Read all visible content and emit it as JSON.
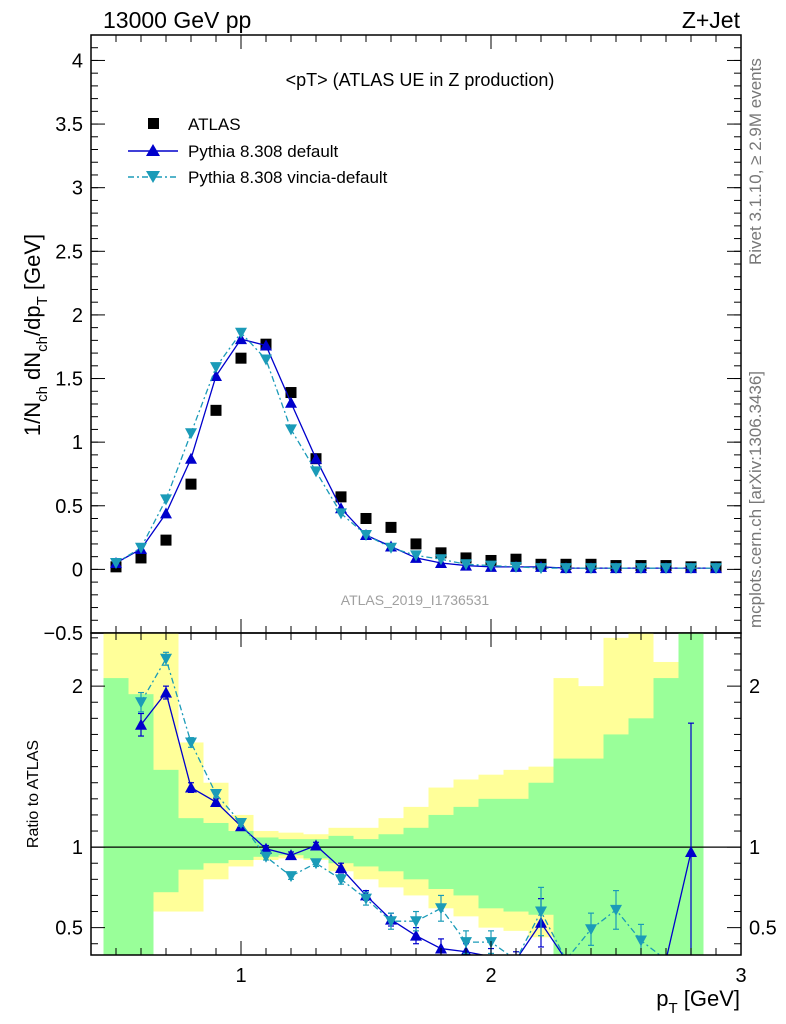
{
  "header": {
    "left": "13000 GeV pp",
    "right": "Z+Jet"
  },
  "side_labels": {
    "rivet": "Rivet 3.1.10, ≥ 2.9M events",
    "mcplots": "mcplots.cern.ch [arXiv:1306.3436]"
  },
  "watermark": "ATLAS_2019_I1736531",
  "colors": {
    "atlas": "#000000",
    "pythia_default": "#0000cc",
    "pythia_vincia": "#1b9bb8",
    "band_yellow": "#ffff99",
    "band_green": "#99ff99"
  },
  "chart_data": [
    {
      "type": "scatter",
      "title": "<pT> (ATLAS UE in Z production)",
      "ylabel_main": "1/N",
      "ylabel_sub1": "ch",
      "ylabel_mid": " dN",
      "ylabel_sub2": "ch",
      "ylabel_mid2": "/dp",
      "ylabel_sub3": "T",
      "ylabel_end": " [GeV]",
      "xlim": [
        0.4,
        3.0
      ],
      "ylim": [
        -0.5,
        4.2
      ],
      "yticks": [
        -0.5,
        0,
        0.5,
        1,
        1.5,
        2,
        2.5,
        3,
        3.5,
        4
      ],
      "ytick_labels": [
        "−0.5",
        "0",
        "0.5",
        "1",
        "1.5",
        "2",
        "2.5",
        "3",
        "3.5",
        "4"
      ],
      "legend_position": "top-left",
      "series": [
        {
          "name": "ATLAS",
          "style": "square",
          "x": [
            0.5,
            0.6,
            0.7,
            0.8,
            0.9,
            1.0,
            1.1,
            1.2,
            1.3,
            1.4,
            1.5,
            1.6,
            1.7,
            1.8,
            1.9,
            2.0,
            2.1,
            2.2,
            2.3,
            2.4,
            2.5,
            2.6,
            2.7,
            2.8,
            2.9
          ],
          "y": [
            0.02,
            0.09,
            0.23,
            0.67,
            1.25,
            1.66,
            1.77,
            1.39,
            0.87,
            0.57,
            0.4,
            0.33,
            0.2,
            0.13,
            0.09,
            0.07,
            0.08,
            0.04,
            0.04,
            0.04,
            0.03,
            0.03,
            0.03,
            0.02,
            0.02
          ]
        },
        {
          "name": "Pythia 8.308 default",
          "style": "triangle-up",
          "x": [
            0.5,
            0.6,
            0.7,
            0.8,
            0.9,
            1.0,
            1.1,
            1.2,
            1.3,
            1.4,
            1.5,
            1.6,
            1.7,
            1.8,
            1.9,
            2.0,
            2.1,
            2.2,
            2.3,
            2.4,
            2.5,
            2.6,
            2.7,
            2.8,
            2.9
          ],
          "y": [
            0.05,
            0.16,
            0.44,
            0.87,
            1.52,
            1.81,
            1.76,
            1.31,
            0.87,
            0.48,
            0.27,
            0.18,
            0.09,
            0.05,
            0.03,
            0.02,
            0.02,
            0.02,
            0.01,
            0.01,
            0.01,
            0.01,
            0.01,
            0.01,
            0.01
          ]
        },
        {
          "name": "Pythia 8.308 vincia-default",
          "style": "triangle-down",
          "x": [
            0.5,
            0.6,
            0.7,
            0.8,
            0.9,
            1.0,
            1.1,
            1.2,
            1.3,
            1.4,
            1.5,
            1.6,
            1.7,
            1.8,
            1.9,
            2.0,
            2.1,
            2.2,
            2.3,
            2.4,
            2.5,
            2.6,
            2.7,
            2.8,
            2.9
          ],
          "y": [
            0.05,
            0.17,
            0.55,
            1.07,
            1.59,
            1.86,
            1.65,
            1.1,
            0.77,
            0.44,
            0.27,
            0.17,
            0.11,
            0.08,
            0.04,
            0.03,
            0.02,
            0.01,
            0.01,
            0.01,
            0.01,
            0.01,
            0.01,
            0.01,
            0.01
          ]
        }
      ]
    },
    {
      "type": "line",
      "ylabel": "Ratio to ATLAS",
      "xlabel_main": "p",
      "xlabel_sub": "T",
      "xlabel_end": " [GeV]",
      "xlim": [
        0.4,
        3.0
      ],
      "ylim": [
        0.33,
        2.33
      ],
      "xticks": [
        1,
        2,
        3
      ],
      "xtick_labels": [
        "1",
        "2",
        "3"
      ],
      "yticks": [
        0.5,
        1,
        2
      ],
      "ytick_labels": [
        "0.5",
        "1",
        "2"
      ],
      "bands": {
        "edges": [
          0.45,
          0.55,
          0.65,
          0.75,
          0.85,
          0.95,
          1.05,
          1.15,
          1.25,
          1.35,
          1.45,
          1.55,
          1.65,
          1.75,
          1.85,
          1.95,
          2.05,
          2.15,
          2.25,
          2.35,
          2.45,
          2.55,
          2.65,
          2.75,
          2.85
        ],
        "yellow_hi": [
          2.33,
          2.33,
          2.33,
          1.65,
          1.4,
          1.2,
          1.1,
          1.09,
          1.08,
          1.12,
          1.12,
          1.18,
          1.25,
          1.37,
          1.42,
          1.45,
          1.48,
          1.5,
          2.05,
          2.0,
          2.3,
          2.33,
          2.15,
          2.33
        ],
        "yellow_lo": [
          0.33,
          0.33,
          0.6,
          0.6,
          0.8,
          0.88,
          0.92,
          0.93,
          0.92,
          0.85,
          0.8,
          0.75,
          0.7,
          0.62,
          0.57,
          0.5,
          0.48,
          0.44,
          0.33,
          0.33,
          0.33,
          0.33,
          0.33,
          0.33
        ],
        "green_hi": [
          2.05,
          1.95,
          1.48,
          1.18,
          1.15,
          1.1,
          1.06,
          1.05,
          1.05,
          1.07,
          1.05,
          1.08,
          1.12,
          1.2,
          1.25,
          1.3,
          1.3,
          1.4,
          1.55,
          1.55,
          1.7,
          1.8,
          2.05,
          2.33
        ],
        "green_lo": [
          0.33,
          0.33,
          0.72,
          0.86,
          0.9,
          0.92,
          0.94,
          0.95,
          0.93,
          0.9,
          0.88,
          0.85,
          0.8,
          0.74,
          0.7,
          0.62,
          0.6,
          0.58,
          0.33,
          0.33,
          0.33,
          0.33,
          0.33,
          0.33
        ]
      },
      "series": [
        {
          "name": "Pythia 8.308 default",
          "style": "triangle-up",
          "x": [
            0.6,
            0.7,
            0.8,
            0.9,
            1.0,
            1.1,
            1.2,
            1.3,
            1.4,
            1.5,
            1.6,
            1.7,
            1.8,
            1.9,
            2.0,
            2.1,
            2.2,
            2.3,
            2.4,
            2.5,
            2.6,
            2.7,
            2.8
          ],
          "y": [
            1.76,
            1.96,
            1.37,
            1.28,
            1.13,
            0.99,
            0.95,
            1.01,
            0.87,
            0.7,
            0.55,
            0.45,
            0.37,
            0.35,
            0.32,
            0.3,
            0.53,
            0.3,
            0.3,
            0.3,
            0.3,
            0.3,
            0.97
          ],
          "err": [
            0.07,
            0.04,
            0.03,
            0.02,
            0.02,
            0.02,
            0.02,
            0.02,
            0.03,
            0.03,
            0.04,
            0.05,
            0.06,
            0.05,
            0.05,
            0.05,
            0.15,
            0,
            0,
            0,
            0,
            0,
            0.8
          ]
        },
        {
          "name": "Pythia 8.308 vincia-default",
          "style": "triangle-down",
          "x": [
            0.6,
            0.7,
            0.8,
            0.9,
            1.0,
            1.1,
            1.2,
            1.3,
            1.4,
            1.5,
            1.6,
            1.7,
            1.8,
            1.9,
            2.0,
            2.1,
            2.2,
            2.3,
            2.4,
            2.5,
            2.6,
            2.7,
            2.8
          ],
          "y": [
            1.9,
            2.17,
            1.65,
            1.33,
            1.15,
            0.94,
            0.82,
            0.9,
            0.8,
            0.68,
            0.54,
            0.54,
            0.62,
            0.41,
            0.41,
            0.3,
            0.6,
            0.3,
            0.49,
            0.61,
            0.42,
            0.3,
            0.3
          ],
          "err": [
            0.06,
            0.04,
            0.03,
            0.02,
            0.02,
            0.02,
            0.02,
            0.02,
            0.03,
            0.04,
            0.05,
            0.06,
            0.08,
            0.07,
            0.07,
            0,
            0.15,
            0,
            0.1,
            0.12,
            0.1,
            0,
            0
          ]
        }
      ]
    }
  ]
}
